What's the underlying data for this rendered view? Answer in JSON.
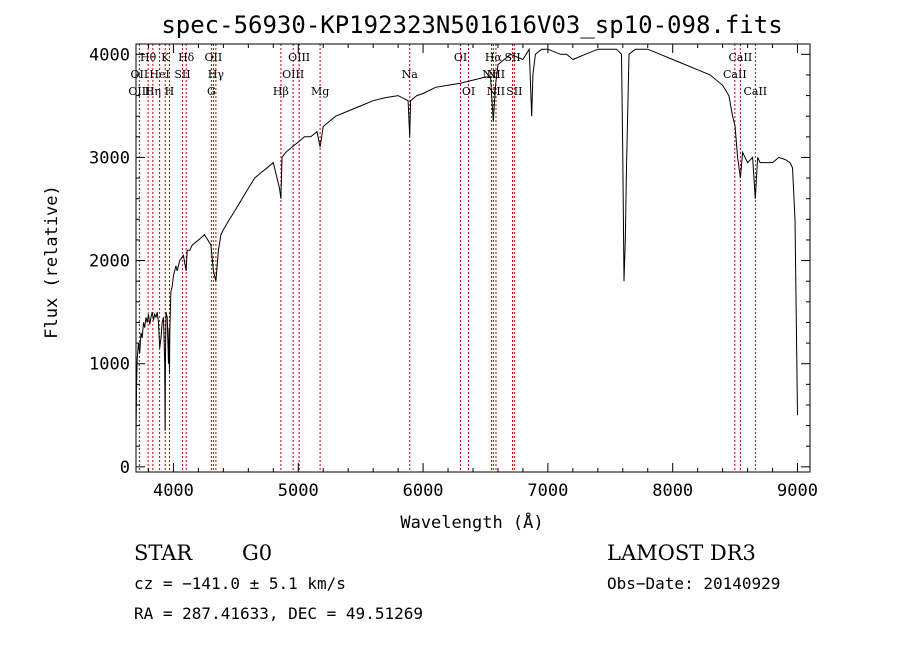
{
  "chart_data": {
    "type": "line",
    "title": "spec-56930-KP192323N501616V03_sp10-098.fits",
    "xlabel": "Wavelength (Å)",
    "ylabel": "Flux (relative)",
    "xlim": [
      3700,
      9100
    ],
    "ylim": [
      -50,
      4100
    ],
    "xticks": [
      4000,
      5000,
      6000,
      7000,
      8000,
      9000
    ],
    "yticks": [
      0,
      1000,
      2000,
      3000,
      4000
    ],
    "grid": false,
    "series": [
      {
        "x": [
          3700,
          3705,
          3710,
          3720,
          3730,
          3740,
          3750,
          3760,
          3770,
          3780,
          3790,
          3800,
          3810,
          3820,
          3830,
          3840,
          3850,
          3860,
          3870,
          3880,
          3890,
          3900,
          3910,
          3920,
          3930,
          3933,
          3936,
          3940,
          3950,
          3960,
          3965,
          3968,
          3971,
          3975,
          3980,
          3990,
          4000,
          4010,
          4020,
          4030,
          4050,
          4080,
          4101,
          4110,
          4130,
          4150,
          4200,
          4250,
          4300,
          4320,
          4340,
          4360,
          4380,
          4400,
          4450,
          4500,
          4550,
          4600,
          4650,
          4700,
          4750,
          4800,
          4850,
          4861,
          4870,
          4900,
          4950,
          5000,
          5050,
          5100,
          5150,
          5175,
          5200,
          5300,
          5400,
          5500,
          5600,
          5700,
          5800,
          5880,
          5893,
          5900,
          5950,
          6000,
          6100,
          6200,
          6300,
          6400,
          6500,
          6540,
          6563,
          6580,
          6600,
          6700,
          6800,
          6850,
          6870,
          6880,
          6900,
          6950,
          7000,
          7100,
          7150,
          7200,
          7300,
          7400,
          7500,
          7550,
          7590,
          7600,
          7610,
          7620,
          7630,
          7650,
          7700,
          7800,
          7900,
          8000,
          8100,
          8200,
          8300,
          8400,
          8450,
          8480,
          8500,
          8520,
          8542,
          8560,
          8600,
          8640,
          8662,
          8680,
          8700,
          8800,
          8850,
          8900,
          8940,
          8960,
          8980,
          9000
        ],
        "values": [
          300,
          800,
          1050,
          1200,
          1100,
          1300,
          1250,
          1400,
          1350,
          1450,
          1400,
          1480,
          1380,
          1450,
          1500,
          1420,
          1480,
          1450,
          1500,
          1400,
          1150,
          1250,
          1400,
          1450,
          1000,
          350,
          1100,
          1500,
          1450,
          1000,
          1350,
          900,
          1300,
          1500,
          1700,
          1750,
          1850,
          1900,
          1950,
          1900,
          2000,
          2050,
          1900,
          2100,
          2100,
          2150,
          2200,
          2250,
          2150,
          1900,
          1800,
          2100,
          2250,
          2300,
          2400,
          2500,
          2600,
          2700,
          2800,
          2850,
          2900,
          2950,
          2700,
          2600,
          3000,
          3050,
          3100,
          3150,
          3200,
          3200,
          3250,
          3100,
          3300,
          3400,
          3450,
          3500,
          3550,
          3580,
          3600,
          3550,
          3200,
          3550,
          3600,
          3620,
          3680,
          3700,
          3720,
          3750,
          3780,
          3780,
          3350,
          3700,
          3900,
          4000,
          3950,
          4050,
          3400,
          3800,
          4000,
          4050,
          4050,
          4000,
          4000,
          3950,
          4000,
          4050,
          4050,
          4050,
          4000,
          3000,
          1800,
          2200,
          2900,
          4000,
          4050,
          4050,
          4000,
          3950,
          3900,
          3850,
          3800,
          3700,
          3600,
          3400,
          3300,
          3000,
          2800,
          3050,
          2950,
          3000,
          2600,
          3000,
          2950,
          2950,
          3000,
          2980,
          2950,
          2900,
          2400,
          500
        ]
      }
    ],
    "lines": [
      {
        "label": "Hθ",
        "x": 3797,
        "row": 0
      },
      {
        "label": "K",
        "x": 3934,
        "row": 0
      },
      {
        "label": "Hδ",
        "x": 4102,
        "row": 0
      },
      {
        "label": "OII",
        "x": 4320,
        "row": 0
      },
      {
        "label": "OIII",
        "x": 5007,
        "row": 0
      },
      {
        "label": "OI",
        "x": 6300,
        "row": 0
      },
      {
        "label": "Hα",
        "x": 6563,
        "row": 0
      },
      {
        "label": "SII",
        "x": 6717,
        "row": 0
      },
      {
        "label": "CaII",
        "x": 8542,
        "row": 0
      },
      {
        "label": "OII",
        "x": 3727,
        "row": 1
      },
      {
        "label": "HeI",
        "x": 3889,
        "row": 1
      },
      {
        "label": "SII",
        "x": 4072,
        "row": 1
      },
      {
        "label": "Hγ",
        "x": 4340,
        "row": 1
      },
      {
        "label": "OIII",
        "x": 4959,
        "row": 1
      },
      {
        "label": "Na",
        "x": 5893,
        "row": 1
      },
      {
        "label": "NII",
        "x": 6548,
        "row": 1
      },
      {
        "label": "NII",
        "x": 6584,
        "row": 1
      },
      {
        "label": "CaII",
        "x": 8498,
        "row": 1
      },
      {
        "label": "OIII",
        "x": 3727,
        "row": 2
      },
      {
        "label": "Hη",
        "x": 3835,
        "row": 2
      },
      {
        "label": "H",
        "x": 3968,
        "row": 2
      },
      {
        "label": "G",
        "x": 4304,
        "row": 2
      },
      {
        "label": "Hβ",
        "x": 4861,
        "row": 2
      },
      {
        "label": "Mg",
        "x": 5175,
        "row": 2
      },
      {
        "label": "OI",
        "x": 6364,
        "row": 2
      },
      {
        "label": "NII",
        "x": 6584,
        "row": 2
      },
      {
        "label": "SII",
        "x": 6731,
        "row": 2
      },
      {
        "label": "CaII",
        "x": 8662,
        "row": 2
      }
    ]
  },
  "info": {
    "object_class": "STAR",
    "subclass": "G0",
    "survey": "LAMOST DR3",
    "cz": "cz = −141.0 ± 5.1 km/s",
    "obs_date": "Obs−Date: 20140929",
    "coords": "RA = 287.41633, DEC =  49.51269"
  },
  "colors": {
    "spectrum": "#000000",
    "line_marker": "#c00000",
    "axes": "#000000",
    "background": "#ffffff"
  }
}
